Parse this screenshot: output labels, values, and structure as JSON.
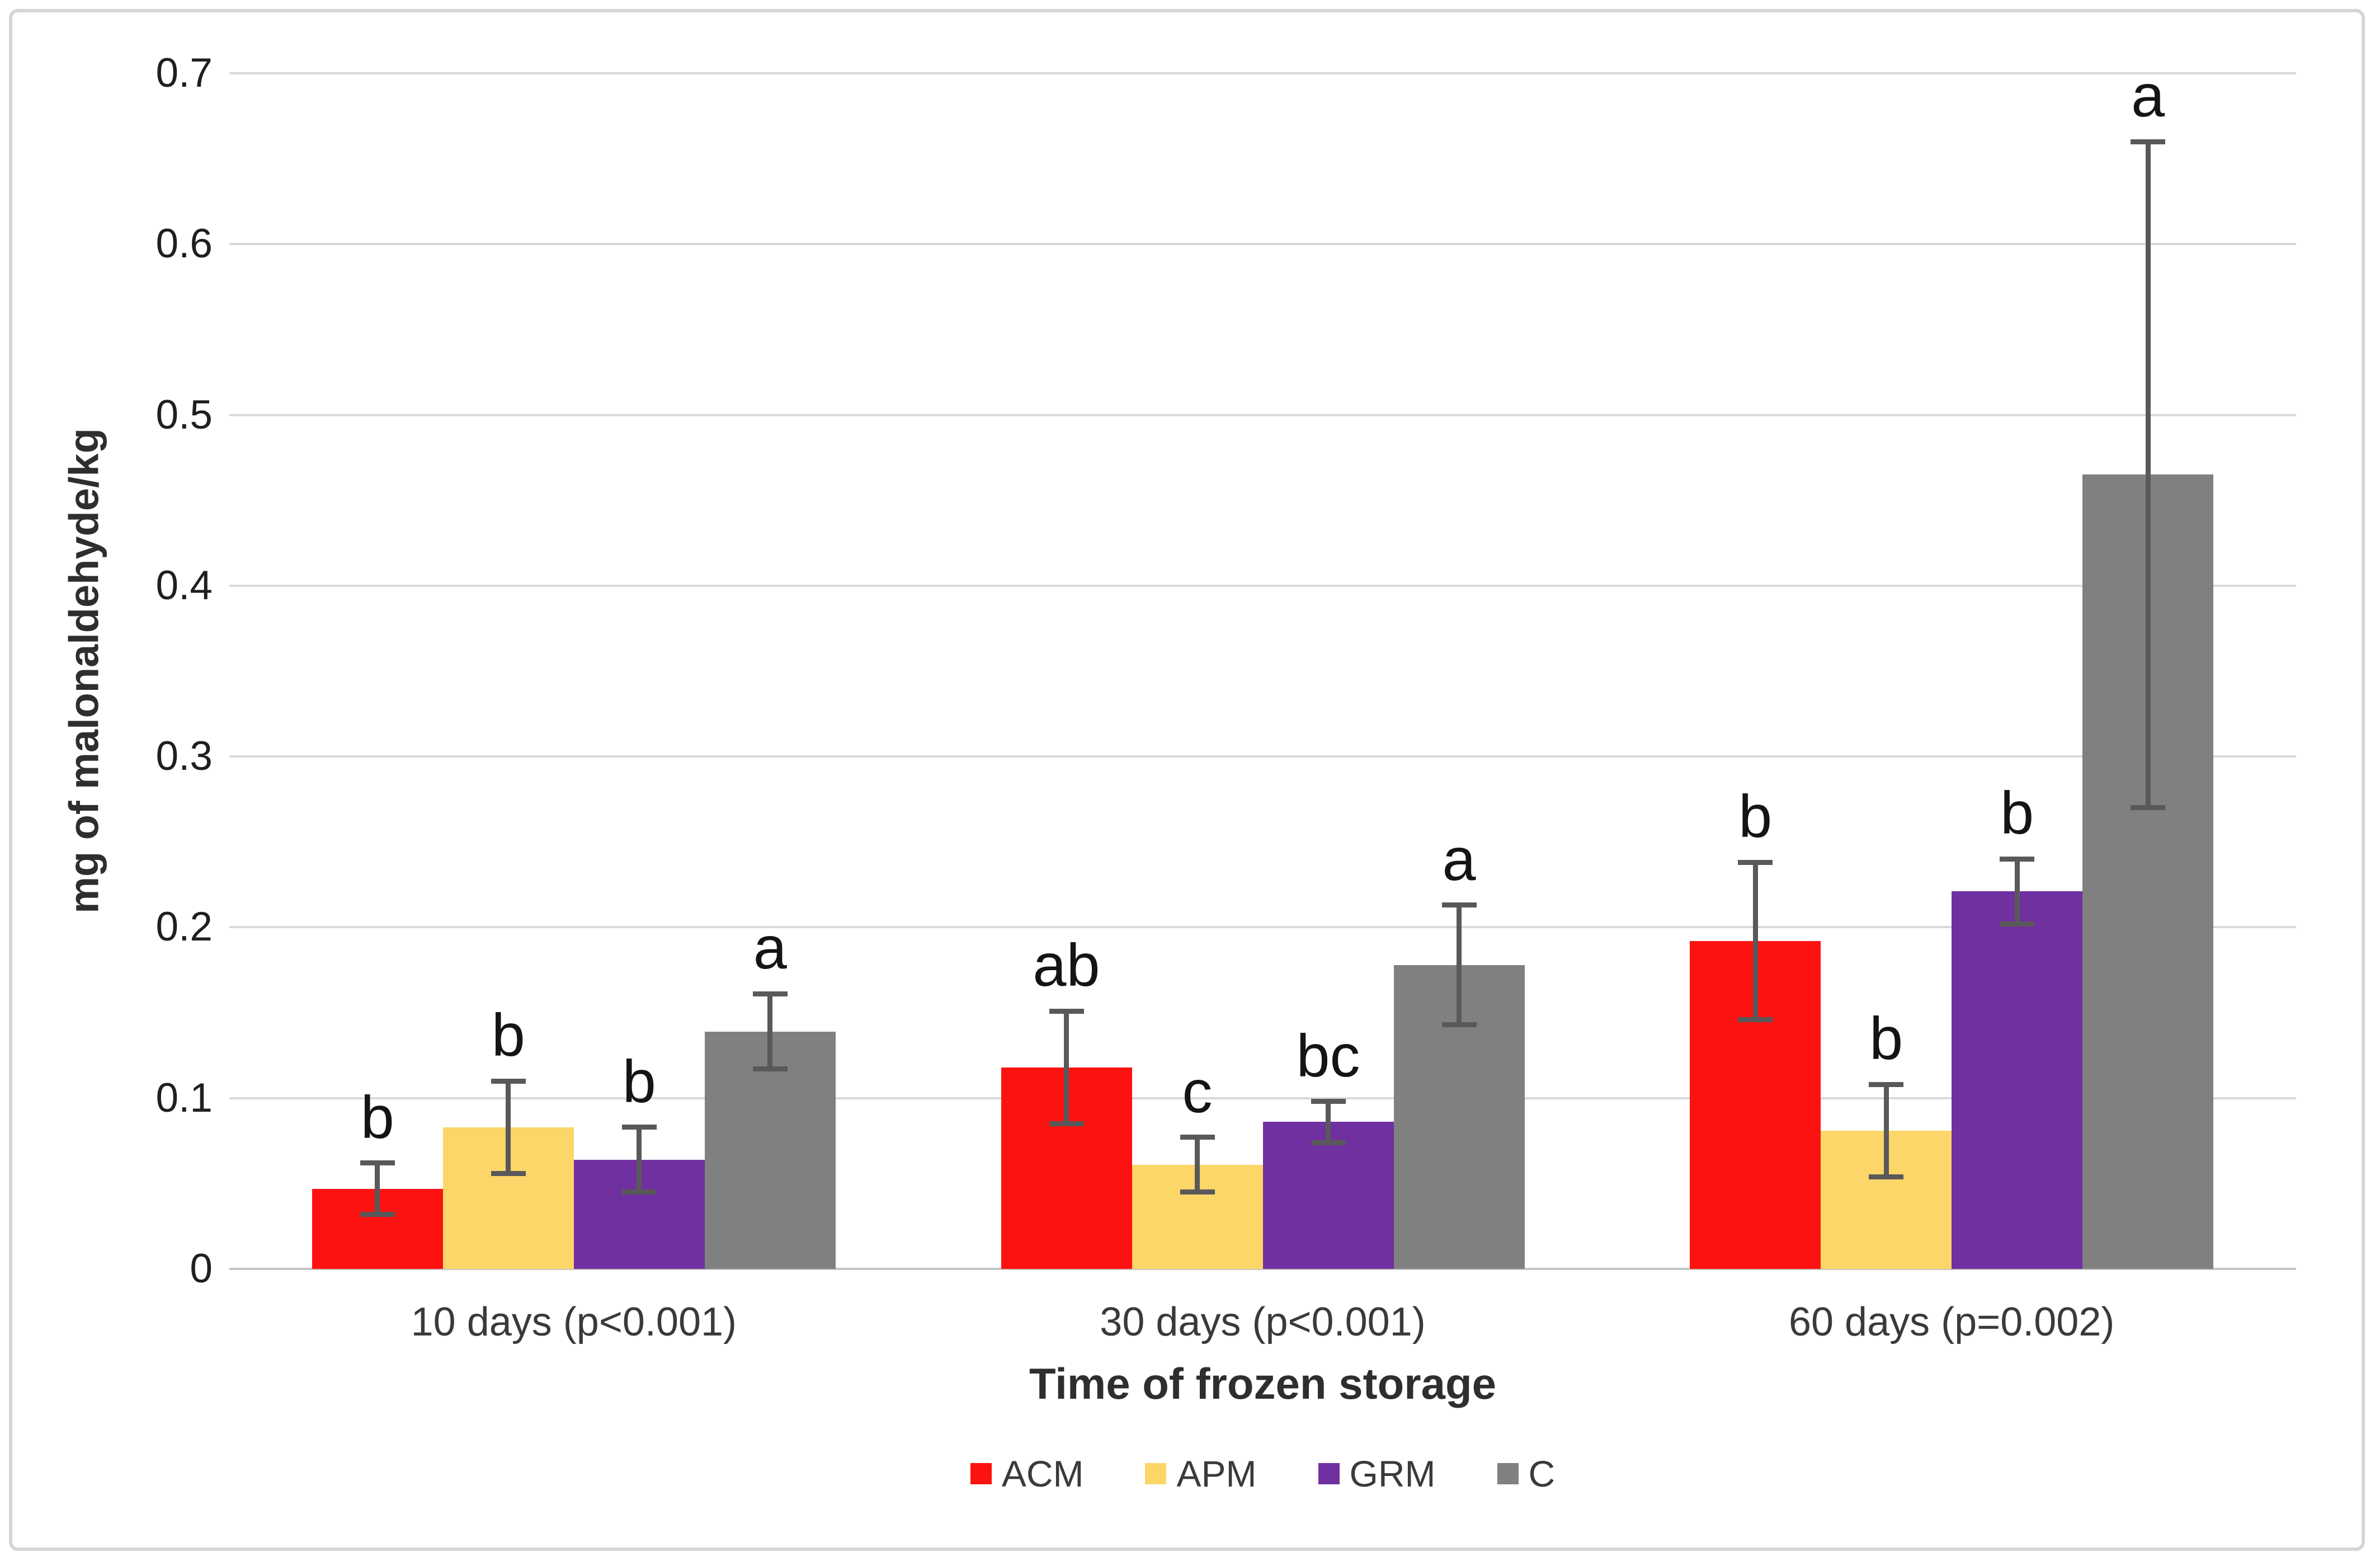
{
  "chart_data": {
    "type": "bar",
    "title": "",
    "xlabel": "Time of frozen storage",
    "ylabel": "mg of malonaldehyde/kg",
    "ylim": [
      0,
      0.7
    ],
    "ytick_step": 0.1,
    "ytick_labels": [
      "0",
      "0.1",
      "0.2",
      "0.3",
      "0.4",
      "0.5",
      "0.6",
      "0.7"
    ],
    "grid": true,
    "legend_position": "bottom",
    "categories": [
      "10 days (p<0.001)",
      "30 days (p<0.001)",
      "60 days (p=0.002)"
    ],
    "series": [
      {
        "name": "ACM",
        "color": "#fd1212",
        "values": [
          0.047,
          0.118,
          0.192
        ],
        "errors": [
          0.015,
          0.033,
          0.046
        ],
        "letters": [
          "b",
          "ab",
          "b"
        ]
      },
      {
        "name": "APM",
        "color": "#fcd669",
        "values": [
          0.083,
          0.061,
          0.081
        ],
        "errors": [
          0.027,
          0.016,
          0.027
        ],
        "letters": [
          "b",
          "c",
          "b"
        ]
      },
      {
        "name": "GRM",
        "color": "#7030a0",
        "values": [
          0.064,
          0.086,
          0.221
        ],
        "errors": [
          0.019,
          0.012,
          0.019
        ],
        "letters": [
          "b",
          "bc",
          "b"
        ]
      },
      {
        "name": "C",
        "color": "#808080",
        "values": [
          0.139,
          0.178,
          0.465
        ],
        "errors": [
          0.022,
          0.035,
          0.195
        ],
        "letters": [
          "a",
          "a",
          "a"
        ]
      }
    ],
    "colors": {
      "gridline": "#d9d9d9",
      "axis_line": "#c6c6c6",
      "error_bar": "#595959",
      "tick_label": "#1f1f1f",
      "category_label": "#3a3a3a",
      "axis_title": "#2e2e2e",
      "significance_letter": "#141414",
      "figure_border": "#d5d5d5",
      "background": "#ffffff"
    }
  }
}
